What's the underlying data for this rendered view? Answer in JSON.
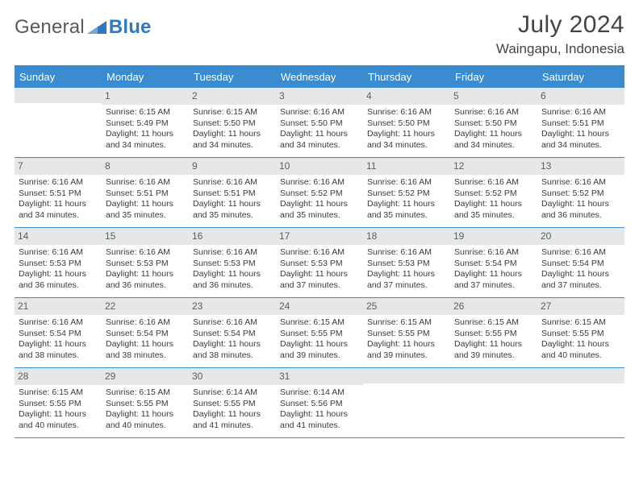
{
  "brand": {
    "word1": "General",
    "word2": "Blue"
  },
  "title": {
    "month": "July 2024",
    "location": "Waingapu, Indonesia"
  },
  "colors": {
    "header_bg": "#3b8bd0",
    "header_text": "#ffffff",
    "daynum_bg": "#e6e7e8",
    "rule": "#3b8bd0",
    "text": "#3a3a3a"
  },
  "daysOfWeek": [
    "Sunday",
    "Monday",
    "Tuesday",
    "Wednesday",
    "Thursday",
    "Friday",
    "Saturday"
  ],
  "weeks": [
    [
      {
        "n": "",
        "sunrise": "",
        "sunset": "",
        "daylight": ""
      },
      {
        "n": "1",
        "sunrise": "Sunrise: 6:15 AM",
        "sunset": "Sunset: 5:49 PM",
        "daylight": "Daylight: 11 hours and 34 minutes."
      },
      {
        "n": "2",
        "sunrise": "Sunrise: 6:15 AM",
        "sunset": "Sunset: 5:50 PM",
        "daylight": "Daylight: 11 hours and 34 minutes."
      },
      {
        "n": "3",
        "sunrise": "Sunrise: 6:16 AM",
        "sunset": "Sunset: 5:50 PM",
        "daylight": "Daylight: 11 hours and 34 minutes."
      },
      {
        "n": "4",
        "sunrise": "Sunrise: 6:16 AM",
        "sunset": "Sunset: 5:50 PM",
        "daylight": "Daylight: 11 hours and 34 minutes."
      },
      {
        "n": "5",
        "sunrise": "Sunrise: 6:16 AM",
        "sunset": "Sunset: 5:50 PM",
        "daylight": "Daylight: 11 hours and 34 minutes."
      },
      {
        "n": "6",
        "sunrise": "Sunrise: 6:16 AM",
        "sunset": "Sunset: 5:51 PM",
        "daylight": "Daylight: 11 hours and 34 minutes."
      }
    ],
    [
      {
        "n": "7",
        "sunrise": "Sunrise: 6:16 AM",
        "sunset": "Sunset: 5:51 PM",
        "daylight": "Daylight: 11 hours and 34 minutes."
      },
      {
        "n": "8",
        "sunrise": "Sunrise: 6:16 AM",
        "sunset": "Sunset: 5:51 PM",
        "daylight": "Daylight: 11 hours and 35 minutes."
      },
      {
        "n": "9",
        "sunrise": "Sunrise: 6:16 AM",
        "sunset": "Sunset: 5:51 PM",
        "daylight": "Daylight: 11 hours and 35 minutes."
      },
      {
        "n": "10",
        "sunrise": "Sunrise: 6:16 AM",
        "sunset": "Sunset: 5:52 PM",
        "daylight": "Daylight: 11 hours and 35 minutes."
      },
      {
        "n": "11",
        "sunrise": "Sunrise: 6:16 AM",
        "sunset": "Sunset: 5:52 PM",
        "daylight": "Daylight: 11 hours and 35 minutes."
      },
      {
        "n": "12",
        "sunrise": "Sunrise: 6:16 AM",
        "sunset": "Sunset: 5:52 PM",
        "daylight": "Daylight: 11 hours and 35 minutes."
      },
      {
        "n": "13",
        "sunrise": "Sunrise: 6:16 AM",
        "sunset": "Sunset: 5:52 PM",
        "daylight": "Daylight: 11 hours and 36 minutes."
      }
    ],
    [
      {
        "n": "14",
        "sunrise": "Sunrise: 6:16 AM",
        "sunset": "Sunset: 5:53 PM",
        "daylight": "Daylight: 11 hours and 36 minutes."
      },
      {
        "n": "15",
        "sunrise": "Sunrise: 6:16 AM",
        "sunset": "Sunset: 5:53 PM",
        "daylight": "Daylight: 11 hours and 36 minutes."
      },
      {
        "n": "16",
        "sunrise": "Sunrise: 6:16 AM",
        "sunset": "Sunset: 5:53 PM",
        "daylight": "Daylight: 11 hours and 36 minutes."
      },
      {
        "n": "17",
        "sunrise": "Sunrise: 6:16 AM",
        "sunset": "Sunset: 5:53 PM",
        "daylight": "Daylight: 11 hours and 37 minutes."
      },
      {
        "n": "18",
        "sunrise": "Sunrise: 6:16 AM",
        "sunset": "Sunset: 5:53 PM",
        "daylight": "Daylight: 11 hours and 37 minutes."
      },
      {
        "n": "19",
        "sunrise": "Sunrise: 6:16 AM",
        "sunset": "Sunset: 5:54 PM",
        "daylight": "Daylight: 11 hours and 37 minutes."
      },
      {
        "n": "20",
        "sunrise": "Sunrise: 6:16 AM",
        "sunset": "Sunset: 5:54 PM",
        "daylight": "Daylight: 11 hours and 37 minutes."
      }
    ],
    [
      {
        "n": "21",
        "sunrise": "Sunrise: 6:16 AM",
        "sunset": "Sunset: 5:54 PM",
        "daylight": "Daylight: 11 hours and 38 minutes."
      },
      {
        "n": "22",
        "sunrise": "Sunrise: 6:16 AM",
        "sunset": "Sunset: 5:54 PM",
        "daylight": "Daylight: 11 hours and 38 minutes."
      },
      {
        "n": "23",
        "sunrise": "Sunrise: 6:16 AM",
        "sunset": "Sunset: 5:54 PM",
        "daylight": "Daylight: 11 hours and 38 minutes."
      },
      {
        "n": "24",
        "sunrise": "Sunrise: 6:15 AM",
        "sunset": "Sunset: 5:55 PM",
        "daylight": "Daylight: 11 hours and 39 minutes."
      },
      {
        "n": "25",
        "sunrise": "Sunrise: 6:15 AM",
        "sunset": "Sunset: 5:55 PM",
        "daylight": "Daylight: 11 hours and 39 minutes."
      },
      {
        "n": "26",
        "sunrise": "Sunrise: 6:15 AM",
        "sunset": "Sunset: 5:55 PM",
        "daylight": "Daylight: 11 hours and 39 minutes."
      },
      {
        "n": "27",
        "sunrise": "Sunrise: 6:15 AM",
        "sunset": "Sunset: 5:55 PM",
        "daylight": "Daylight: 11 hours and 40 minutes."
      }
    ],
    [
      {
        "n": "28",
        "sunrise": "Sunrise: 6:15 AM",
        "sunset": "Sunset: 5:55 PM",
        "daylight": "Daylight: 11 hours and 40 minutes."
      },
      {
        "n": "29",
        "sunrise": "Sunrise: 6:15 AM",
        "sunset": "Sunset: 5:55 PM",
        "daylight": "Daylight: 11 hours and 40 minutes."
      },
      {
        "n": "30",
        "sunrise": "Sunrise: 6:14 AM",
        "sunset": "Sunset: 5:55 PM",
        "daylight": "Daylight: 11 hours and 41 minutes."
      },
      {
        "n": "31",
        "sunrise": "Sunrise: 6:14 AM",
        "sunset": "Sunset: 5:56 PM",
        "daylight": "Daylight: 11 hours and 41 minutes."
      },
      {
        "n": "",
        "sunrise": "",
        "sunset": "",
        "daylight": ""
      },
      {
        "n": "",
        "sunrise": "",
        "sunset": "",
        "daylight": ""
      },
      {
        "n": "",
        "sunrise": "",
        "sunset": "",
        "daylight": ""
      }
    ]
  ]
}
